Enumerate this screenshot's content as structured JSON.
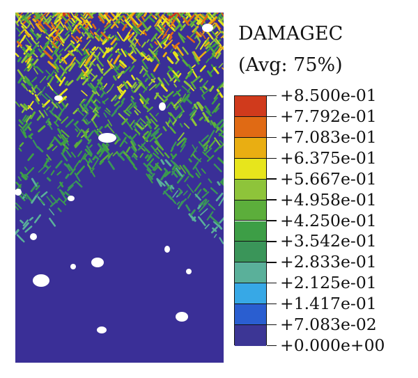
{
  "legend": {
    "title": "DAMAGEC",
    "subtitle": "(Avg: 75%)",
    "levels": [
      "+8.500e-01",
      "+7.792e-01",
      "+7.083e-01",
      "+6.375e-01",
      "+5.667e-01",
      "+4.958e-01",
      "+4.250e-01",
      "+3.542e-01",
      "+2.833e-01",
      "+2.125e-01",
      "+1.417e-01",
      "+7.083e-02",
      "+0.000e+00"
    ],
    "band_colors": [
      "#d03a1c",
      "#e06a14",
      "#e9ae12",
      "#e7e51c",
      "#8ec43a",
      "#5cae3b",
      "#3d9e46",
      "#3a9559",
      "#5ab09a",
      "#37a8e6",
      "#2a5ed0",
      "#3c3695"
    ]
  },
  "contour": {
    "background_color": "#3a2f97",
    "field": "DAMAGEC"
  }
}
